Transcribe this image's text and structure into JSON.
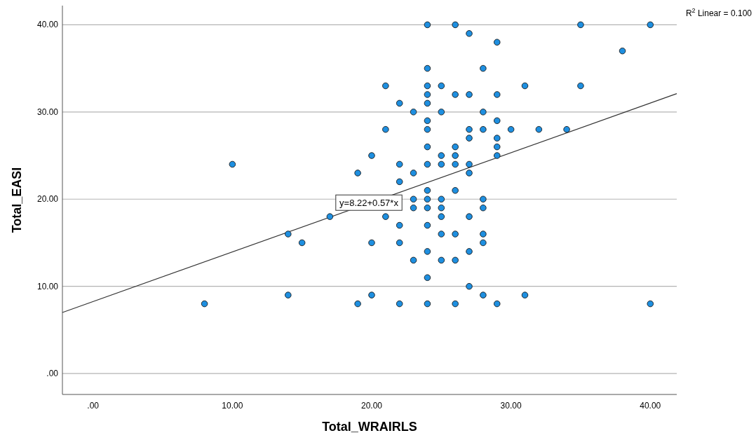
{
  "chart_data": {
    "type": "scatter",
    "xlabel": "Total_WRAIRLS",
    "ylabel": "Total_EASI",
    "xlim": [
      -2.2,
      41.9
    ],
    "ylim": [
      -2.4,
      42.2
    ],
    "xticks": [
      {
        "value": 0,
        "label": ".00"
      },
      {
        "value": 10,
        "label": "10.00"
      },
      {
        "value": 20,
        "label": "20.00"
      },
      {
        "value": 30,
        "label": "30.00"
      },
      {
        "value": 40,
        "label": "40.00"
      }
    ],
    "yticks": [
      {
        "value": 0,
        "label": ".00"
      },
      {
        "value": 10,
        "label": "10.00"
      },
      {
        "value": 20,
        "label": "20.00"
      },
      {
        "value": 30,
        "label": "30.00"
      },
      {
        "value": 40,
        "label": "40.00"
      }
    ],
    "grid": "y",
    "annotations": [
      {
        "text": "y=8.22+0.57*x",
        "x": 19.8,
        "y": 19.6
      },
      "R$^{2}$ Linear = 0.100"
    ],
    "series": [
      {
        "color": "#1e8fe0",
        "marker": "circle",
        "x": [
          8,
          10,
          14,
          14,
          15,
          17,
          19,
          19,
          20,
          20,
          20,
          21,
          21,
          21,
          22,
          22,
          22,
          22,
          22,
          22,
          23,
          23,
          23,
          23,
          23,
          24,
          24,
          24,
          24,
          24,
          24,
          24,
          24,
          24,
          24,
          24,
          24,
          24,
          24,
          24,
          24,
          25,
          25,
          25,
          25,
          25,
          25,
          25,
          25,
          25,
          26,
          26,
          26,
          26,
          26,
          26,
          26,
          26,
          26,
          27,
          27,
          27,
          27,
          27,
          27,
          27,
          27,
          27,
          28,
          28,
          28,
          28,
          28,
          28,
          28,
          28,
          29,
          29,
          29,
          29,
          29,
          29,
          29,
          30,
          31,
          31,
          32,
          34,
          35,
          35,
          38,
          40,
          40
        ],
        "values": [
          8,
          24,
          16,
          9,
          15,
          18,
          23,
          8,
          25,
          15,
          9,
          33,
          28,
          18,
          31,
          24,
          22,
          17,
          15,
          8,
          30,
          23,
          20,
          19,
          13,
          40,
          35,
          33,
          32,
          31,
          29,
          28,
          26,
          24,
          21,
          20,
          19,
          17,
          14,
          11,
          8,
          33,
          30,
          25,
          24,
          20,
          19,
          18,
          16,
          13,
          40,
          32,
          26,
          25,
          24,
          21,
          16,
          13,
          8,
          39,
          32,
          28,
          27,
          24,
          23,
          18,
          14,
          10,
          35,
          30,
          28,
          20,
          19,
          16,
          15,
          9,
          38,
          32,
          29,
          27,
          26,
          25,
          8,
          28,
          33,
          9,
          28,
          28,
          40,
          33,
          37,
          40,
          8
        ]
      },
      {
        "type": "line",
        "color": "#333333",
        "x": [
          -2.2,
          41.9
        ],
        "values": [
          7.0,
          32.1
        ]
      }
    ]
  }
}
